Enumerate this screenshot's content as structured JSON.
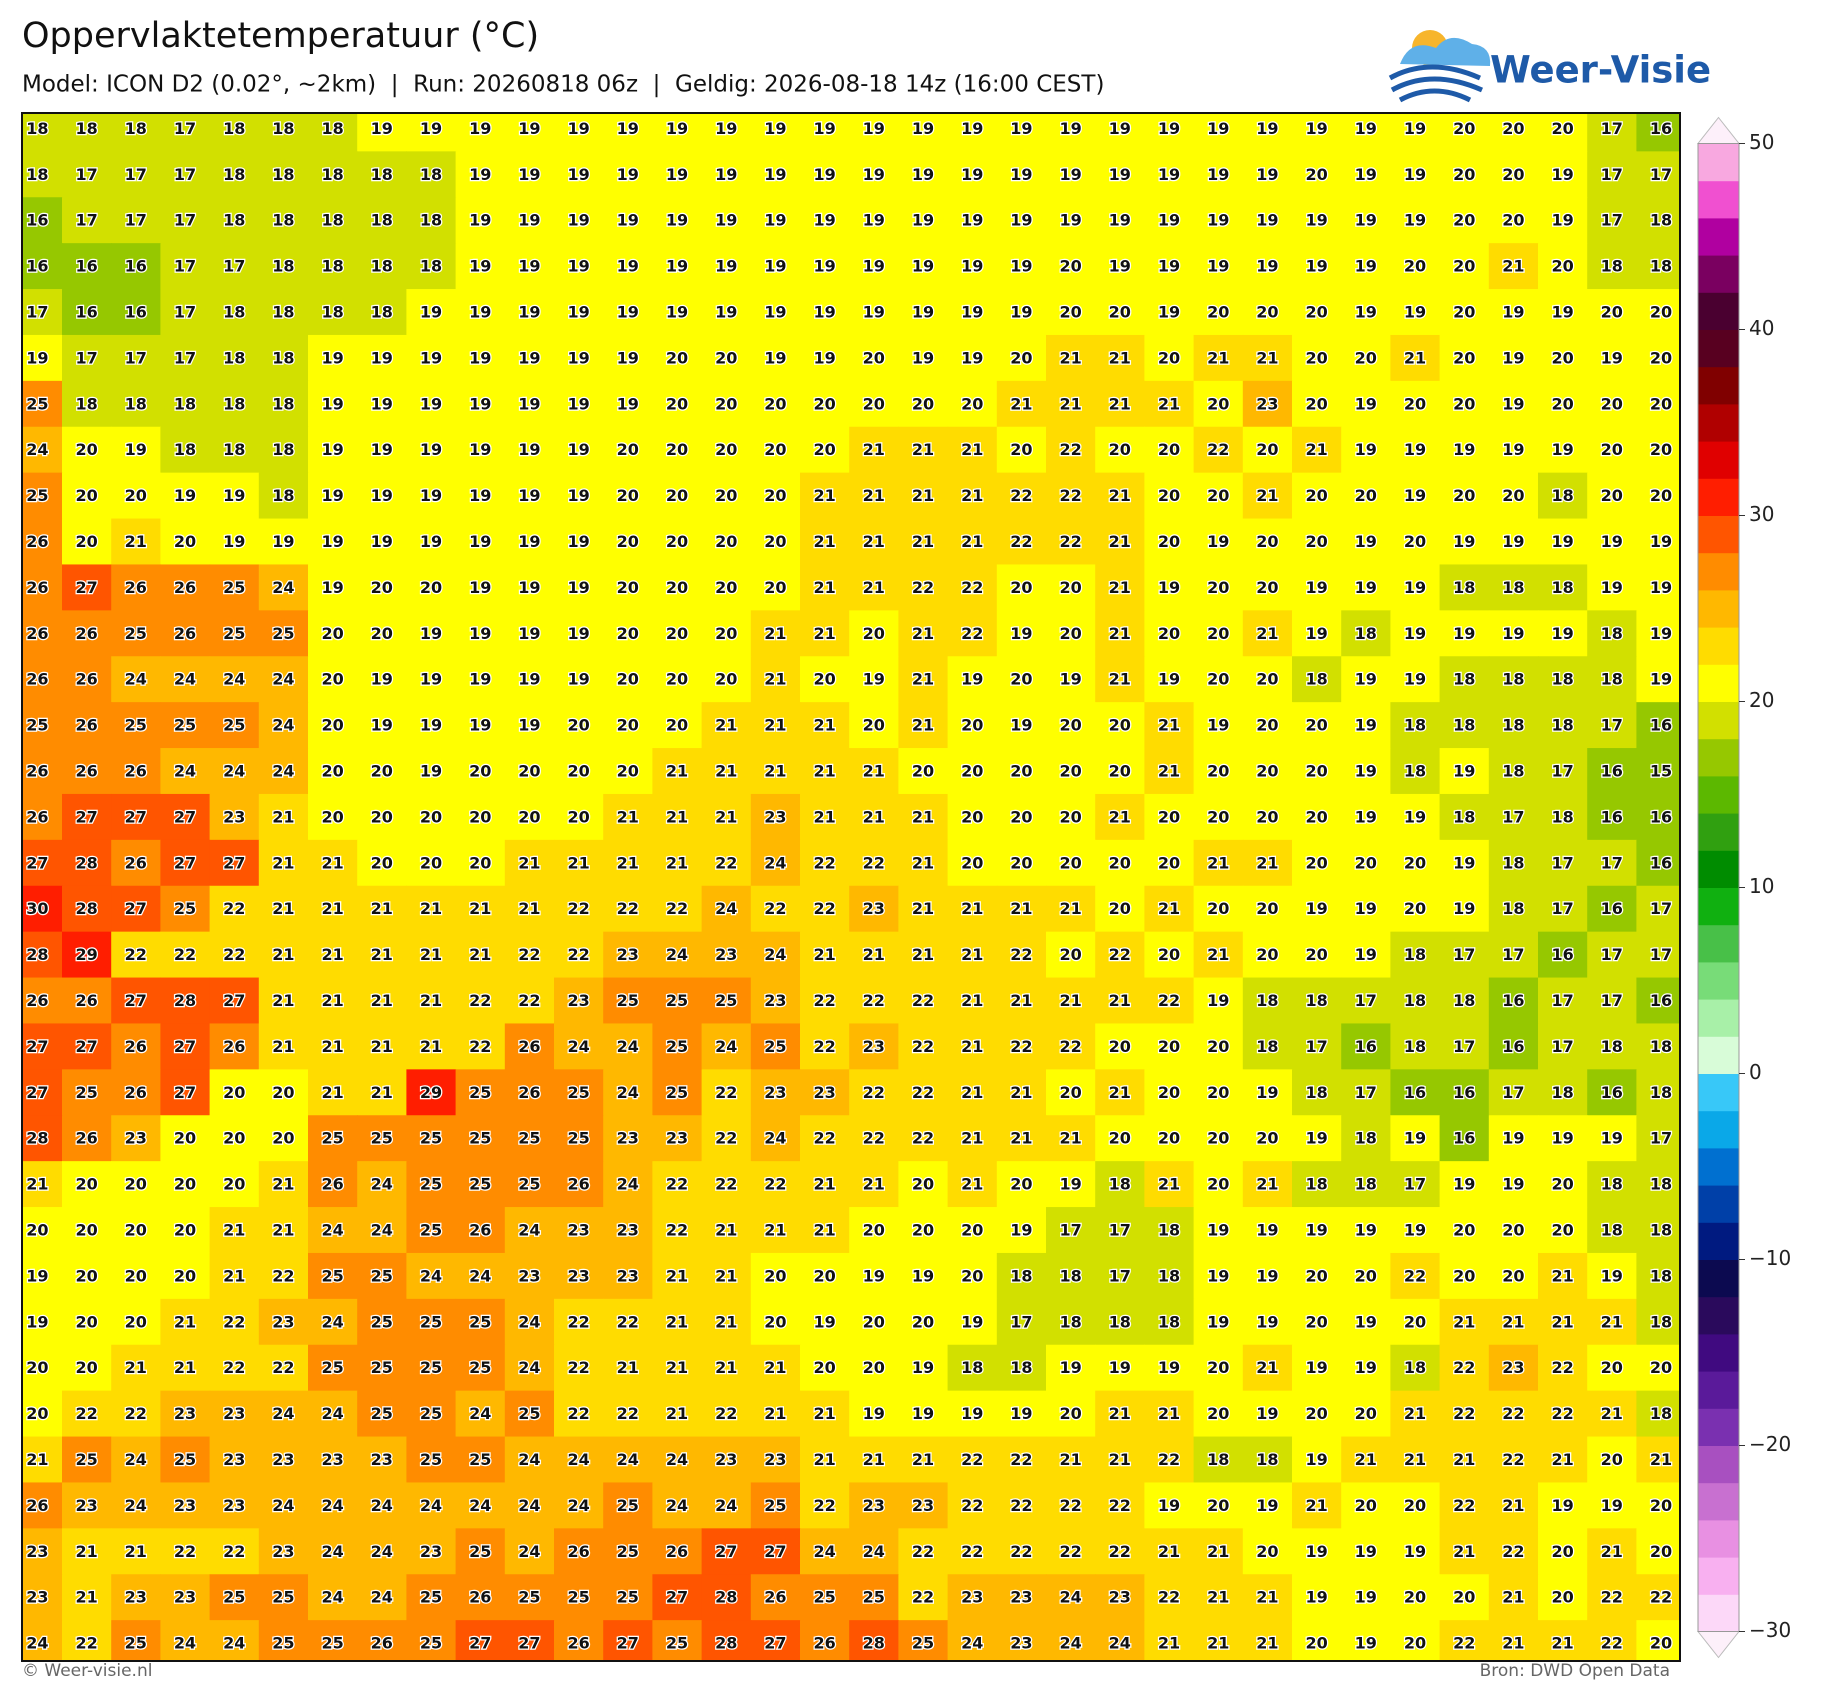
{
  "header": {
    "title": "Oppervlaktetemperatuur (°C)",
    "subtitle": "Model: ICON D2 (0.02°, ~2km)  |  Run: 20260818 06z  |  Geldig: 2026-08-18 14z (16:00 CEST)",
    "logo": "Weer-Visie"
  },
  "map": {
    "clim": [
      -30,
      50
    ],
    "colors": [
      "#fcd8f8",
      "#f8b0f0",
      "#e890e2",
      "#c870d0",
      "#a850c0",
      "#7a30b0",
      "#5a1a9a",
      "#400a80",
      "#2a0a5c",
      "#0c0a50",
      "#001a80",
      "#0040a8",
      "#0070d0",
      "#0aa8e8",
      "#38c8f8",
      "#d8fcd8",
      "#a8f0a8",
      "#78dc78",
      "#48c048",
      "#10b010",
      "#008c00",
      "#30a010",
      "#5cb800",
      "#96c800",
      "#d2e000",
      "#ffff00",
      "#ffdc00",
      "#ffb800",
      "#ff8c00",
      "#ff5500",
      "#ff1e00",
      "#e00000",
      "#b00000",
      "#800000",
      "#580020",
      "#4a0030",
      "#7a0060",
      "#b000a0",
      "#f050d0",
      "#f8a8e0"
    ],
    "values": [
      [
        18,
        18,
        18,
        17,
        18,
        18,
        18,
        19,
        19,
        19,
        19,
        19,
        19,
        19,
        19,
        19,
        19,
        19,
        19,
        19,
        19,
        19,
        19,
        19,
        19,
        19,
        19,
        19,
        19,
        20,
        20,
        20,
        17,
        16
      ],
      [
        18,
        17,
        17,
        17,
        18,
        18,
        18,
        18,
        18,
        19,
        19,
        19,
        19,
        19,
        19,
        19,
        19,
        19,
        19,
        19,
        19,
        19,
        19,
        19,
        19,
        19,
        20,
        19,
        19,
        20,
        20,
        19,
        17,
        17
      ],
      [
        16,
        17,
        17,
        17,
        18,
        18,
        18,
        18,
        18,
        19,
        19,
        19,
        19,
        19,
        19,
        19,
        19,
        19,
        19,
        19,
        19,
        19,
        19,
        19,
        19,
        19,
        19,
        19,
        19,
        20,
        20,
        19,
        17,
        18
      ],
      [
        16,
        16,
        16,
        17,
        17,
        18,
        18,
        18,
        18,
        19,
        19,
        19,
        19,
        19,
        19,
        19,
        19,
        19,
        19,
        19,
        19,
        20,
        19,
        19,
        19,
        19,
        19,
        19,
        20,
        20,
        21,
        20,
        18,
        18
      ],
      [
        17,
        16,
        16,
        17,
        18,
        18,
        18,
        18,
        19,
        19,
        19,
        19,
        19,
        19,
        19,
        19,
        19,
        19,
        19,
        19,
        19,
        20,
        20,
        19,
        20,
        20,
        20,
        19,
        19,
        20,
        19,
        19,
        20,
        20
      ],
      [
        19,
        17,
        17,
        17,
        18,
        18,
        19,
        19,
        19,
        19,
        19,
        19,
        19,
        20,
        20,
        19,
        19,
        20,
        19,
        19,
        20,
        21,
        21,
        20,
        21,
        21,
        20,
        20,
        21,
        20,
        19,
        20,
        19,
        20
      ],
      [
        25,
        18,
        18,
        18,
        18,
        18,
        19,
        19,
        19,
        19,
        19,
        19,
        19,
        20,
        20,
        20,
        20,
        20,
        20,
        20,
        21,
        21,
        21,
        21,
        20,
        23,
        20,
        19,
        20,
        20,
        19,
        20,
        20,
        20
      ],
      [
        24,
        20,
        19,
        18,
        18,
        18,
        19,
        19,
        19,
        19,
        19,
        19,
        20,
        20,
        20,
        20,
        20,
        21,
        21,
        21,
        20,
        22,
        20,
        20,
        22,
        20,
        21,
        19,
        19,
        19,
        19,
        19,
        20,
        20
      ],
      [
        25,
        20,
        20,
        19,
        19,
        18,
        19,
        19,
        19,
        19,
        19,
        19,
        20,
        20,
        20,
        20,
        21,
        21,
        21,
        21,
        22,
        22,
        21,
        20,
        20,
        21,
        20,
        20,
        19,
        20,
        20,
        18,
        20,
        20
      ],
      [
        26,
        20,
        21,
        20,
        19,
        19,
        19,
        19,
        19,
        19,
        19,
        19,
        20,
        20,
        20,
        20,
        21,
        21,
        21,
        21,
        22,
        22,
        21,
        20,
        19,
        20,
        20,
        19,
        20,
        19,
        19,
        19,
        19,
        19
      ],
      [
        26,
        27,
        26,
        26,
        25,
        24,
        19,
        20,
        20,
        19,
        19,
        19,
        20,
        20,
        20,
        20,
        21,
        21,
        22,
        22,
        20,
        20,
        21,
        19,
        20,
        20,
        19,
        19,
        19,
        18,
        18,
        18,
        19,
        19
      ],
      [
        26,
        26,
        25,
        26,
        25,
        25,
        20,
        20,
        19,
        19,
        19,
        19,
        20,
        20,
        20,
        21,
        21,
        20,
        21,
        22,
        19,
        20,
        21,
        20,
        20,
        21,
        19,
        18,
        19,
        19,
        19,
        19,
        18,
        19
      ],
      [
        26,
        26,
        24,
        24,
        24,
        24,
        20,
        19,
        19,
        19,
        19,
        19,
        20,
        20,
        20,
        21,
        20,
        19,
        21,
        19,
        20,
        19,
        21,
        19,
        20,
        20,
        18,
        19,
        19,
        18,
        18,
        18,
        18,
        19
      ],
      [
        25,
        26,
        25,
        25,
        25,
        24,
        20,
        19,
        19,
        19,
        19,
        20,
        20,
        20,
        21,
        21,
        21,
        20,
        21,
        20,
        19,
        20,
        20,
        21,
        19,
        20,
        20,
        19,
        18,
        18,
        18,
        18,
        17,
        16
      ],
      [
        26,
        26,
        26,
        24,
        24,
        24,
        20,
        20,
        19,
        20,
        20,
        20,
        20,
        21,
        21,
        21,
        21,
        21,
        20,
        20,
        20,
        20,
        20,
        21,
        20,
        20,
        20,
        19,
        18,
        19,
        18,
        17,
        16,
        15
      ],
      [
        26,
        27,
        27,
        27,
        23,
        21,
        20,
        20,
        20,
        20,
        20,
        20,
        21,
        21,
        21,
        23,
        21,
        21,
        21,
        20,
        20,
        20,
        21,
        20,
        20,
        20,
        20,
        19,
        19,
        18,
        17,
        18,
        16,
        16
      ],
      [
        27,
        28,
        26,
        27,
        27,
        21,
        21,
        20,
        20,
        20,
        21,
        21,
        21,
        21,
        22,
        24,
        22,
        22,
        21,
        20,
        20,
        20,
        20,
        20,
        21,
        21,
        20,
        20,
        20,
        19,
        18,
        17,
        17,
        16
      ],
      [
        30,
        28,
        27,
        25,
        22,
        21,
        21,
        21,
        21,
        21,
        21,
        22,
        22,
        22,
        24,
        22,
        22,
        23,
        21,
        21,
        21,
        21,
        20,
        21,
        20,
        20,
        19,
        19,
        20,
        19,
        18,
        17,
        16,
        17
      ],
      [
        28,
        29,
        22,
        22,
        22,
        21,
        21,
        21,
        21,
        21,
        22,
        22,
        23,
        24,
        23,
        24,
        21,
        21,
        21,
        21,
        22,
        20,
        22,
        20,
        21,
        20,
        20,
        19,
        18,
        17,
        17,
        16,
        17,
        17
      ],
      [
        26,
        26,
        27,
        28,
        27,
        21,
        21,
        21,
        21,
        22,
        22,
        23,
        25,
        25,
        25,
        23,
        22,
        22,
        22,
        21,
        21,
        21,
        21,
        22,
        19,
        18,
        18,
        17,
        18,
        18,
        16,
        17,
        17,
        16
      ],
      [
        27,
        27,
        26,
        27,
        26,
        21,
        21,
        21,
        21,
        22,
        26,
        24,
        24,
        25,
        24,
        25,
        22,
        23,
        22,
        21,
        22,
        22,
        20,
        20,
        20,
        18,
        17,
        16,
        18,
        17,
        16,
        17,
        18,
        18
      ],
      [
        27,
        25,
        26,
        27,
        20,
        20,
        21,
        21,
        29,
        25,
        26,
        25,
        24,
        25,
        22,
        23,
        23,
        22,
        22,
        21,
        21,
        20,
        21,
        20,
        20,
        19,
        18,
        17,
        16,
        16,
        17,
        18,
        16,
        18
      ],
      [
        28,
        26,
        23,
        20,
        20,
        20,
        25,
        25,
        25,
        25,
        25,
        25,
        23,
        23,
        22,
        24,
        22,
        22,
        22,
        21,
        21,
        21,
        20,
        20,
        20,
        20,
        19,
        18,
        19,
        16,
        19,
        19,
        19,
        17
      ],
      [
        21,
        20,
        20,
        20,
        20,
        21,
        26,
        24,
        25,
        25,
        25,
        26,
        24,
        22,
        22,
        22,
        21,
        21,
        20,
        21,
        20,
        19,
        18,
        21,
        20,
        21,
        18,
        18,
        17,
        19,
        19,
        20,
        18,
        18
      ],
      [
        20,
        20,
        20,
        20,
        21,
        21,
        24,
        24,
        25,
        26,
        24,
        23,
        23,
        22,
        21,
        21,
        21,
        20,
        20,
        20,
        19,
        17,
        17,
        18,
        19,
        19,
        19,
        19,
        19,
        20,
        20,
        20,
        18,
        18
      ],
      [
        19,
        20,
        20,
        20,
        21,
        22,
        25,
        25,
        24,
        24,
        23,
        23,
        23,
        21,
        21,
        20,
        20,
        19,
        19,
        20,
        18,
        18,
        17,
        18,
        19,
        19,
        20,
        20,
        22,
        20,
        20,
        21,
        19,
        18
      ],
      [
        19,
        20,
        20,
        21,
        22,
        23,
        24,
        25,
        25,
        25,
        24,
        22,
        22,
        21,
        21,
        20,
        19,
        20,
        20,
        19,
        17,
        18,
        18,
        18,
        19,
        19,
        20,
        19,
        20,
        21,
        21,
        21,
        21,
        18
      ],
      [
        20,
        20,
        21,
        21,
        22,
        22,
        25,
        25,
        25,
        25,
        24,
        22,
        21,
        21,
        21,
        21,
        20,
        20,
        19,
        18,
        18,
        19,
        19,
        19,
        20,
        21,
        19,
        19,
        18,
        22,
        23,
        22,
        20,
        20
      ],
      [
        20,
        22,
        22,
        23,
        23,
        24,
        24,
        25,
        25,
        24,
        25,
        22,
        22,
        21,
        22,
        21,
        21,
        19,
        19,
        19,
        19,
        20,
        21,
        21,
        20,
        19,
        20,
        20,
        21,
        22,
        22,
        22,
        21,
        18
      ],
      [
        21,
        25,
        24,
        25,
        23,
        23,
        23,
        23,
        25,
        25,
        24,
        24,
        24,
        24,
        23,
        23,
        21,
        21,
        21,
        22,
        22,
        21,
        21,
        22,
        18,
        18,
        19,
        21,
        21,
        21,
        22,
        21,
        20,
        21
      ],
      [
        26,
        23,
        24,
        23,
        23,
        24,
        24,
        24,
        24,
        24,
        24,
        24,
        25,
        24,
        24,
        25,
        22,
        23,
        23,
        22,
        22,
        22,
        22,
        19,
        20,
        19,
        21,
        20,
        20,
        22,
        21,
        19,
        19,
        20
      ],
      [
        23,
        21,
        21,
        22,
        22,
        23,
        24,
        24,
        23,
        25,
        24,
        26,
        25,
        26,
        27,
        27,
        24,
        24,
        22,
        22,
        22,
        22,
        22,
        21,
        21,
        20,
        19,
        19,
        19,
        21,
        22,
        20,
        21,
        20
      ],
      [
        23,
        21,
        23,
        23,
        25,
        25,
        24,
        24,
        25,
        26,
        25,
        25,
        25,
        27,
        28,
        26,
        25,
        25,
        22,
        23,
        23,
        24,
        23,
        22,
        21,
        21,
        19,
        19,
        20,
        20,
        21,
        20,
        22,
        22
      ],
      [
        24,
        22,
        25,
        24,
        24,
        25,
        25,
        26,
        25,
        27,
        27,
        26,
        27,
        25,
        28,
        27,
        26,
        28,
        25,
        24,
        23,
        24,
        24,
        21,
        21,
        21,
        20,
        19,
        20,
        22,
        21,
        21,
        22,
        20
      ]
    ]
  },
  "colorbar": {
    "ticks": [
      50,
      40,
      30,
      20,
      10,
      0,
      {
        "value": -10,
        "label": "−10"
      },
      {
        "value": -20,
        "label": "−20"
      },
      {
        "value": -30,
        "label": "−30"
      }
    ]
  },
  "footer": {
    "left": "© Weer-visie.nl",
    "right": "Bron: DWD Open Data"
  }
}
